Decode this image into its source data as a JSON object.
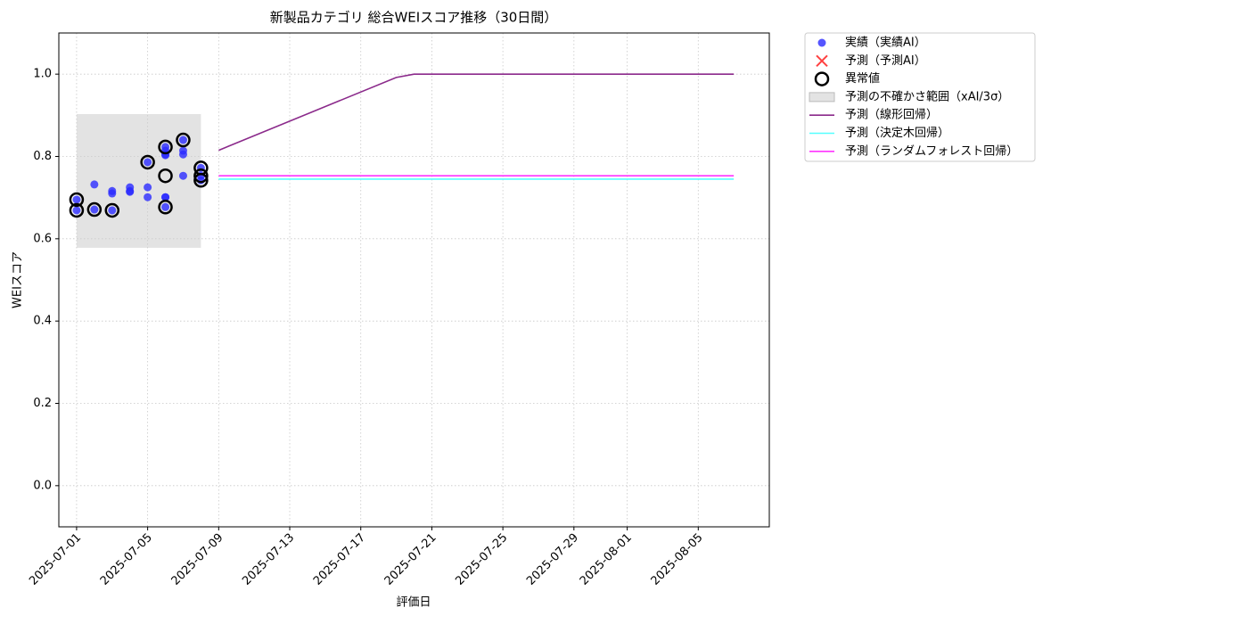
{
  "chart_data": {
    "type": "line",
    "title": "新製品カテゴリ 総合WEIスコア推移（30日間）",
    "x_label": "評価日",
    "y_label": "WEIスコア",
    "xlim": [
      "2025-06-30",
      "2025-08-09"
    ],
    "xticks": [
      "2025-07-01",
      "2025-07-05",
      "2025-07-09",
      "2025-07-13",
      "2025-07-17",
      "2025-07-21",
      "2025-07-25",
      "2025-07-29",
      "2025-08-01",
      "2025-08-05"
    ],
    "ylim": [
      -0.1,
      1.1
    ],
    "yticks": [
      {
        "value": 0,
        "label": "0.0"
      },
      {
        "value": 0.2,
        "label": "0.2"
      },
      {
        "value": 0.4,
        "label": "0.4"
      },
      {
        "value": 0.6,
        "label": "0.6"
      },
      {
        "value": 0.8,
        "label": "0.8"
      },
      {
        "value": 1,
        "label": "1.0"
      }
    ],
    "grid": true,
    "legend": "outside upper right",
    "series": [
      {
        "name": "実績（実績AI）",
        "type": "scatter",
        "marker": "dot",
        "color": "#2a2aff",
        "x": [
          "2025-07-01",
          "2025-07-01",
          "2025-07-02",
          "2025-07-02",
          "2025-07-03",
          "2025-07-03",
          "2025-07-03",
          "2025-07-04",
          "2025-07-04",
          "2025-07-04",
          "2025-07-05",
          "2025-07-05",
          "2025-07-05",
          "2025-07-06",
          "2025-07-06",
          "2025-07-06",
          "2025-07-06",
          "2025-07-06",
          "2025-07-06",
          "2025-07-06",
          "2025-07-07",
          "2025-07-07",
          "2025-07-07",
          "2025-07-07",
          "2025-07-08",
          "2025-07-08",
          "2025-07-08"
        ],
        "values": [
          0.695,
          0.669,
          0.732,
          0.671,
          0.716,
          0.669,
          0.71,
          0.714,
          0.725,
          0.716,
          0.725,
          0.786,
          0.701,
          0.701,
          0.701,
          0.677,
          0.823,
          0.814,
          0.805,
          0.803,
          0.753,
          0.805,
          0.814,
          0.84,
          0.772,
          0.753,
          0.742
        ]
      },
      {
        "name": "予測（予測AI）",
        "type": "scatter",
        "marker": "x",
        "color": "#ff0000",
        "x": [],
        "values": []
      },
      {
        "name": "異常値",
        "type": "scatter",
        "marker": "ring",
        "color": "#000000",
        "x": [
          "2025-07-01",
          "2025-07-01",
          "2025-07-02",
          "2025-07-03",
          "2025-07-05",
          "2025-07-06",
          "2025-07-06",
          "2025-07-06",
          "2025-07-07",
          "2025-07-08",
          "2025-07-08",
          "2025-07-08"
        ],
        "values": [
          0.695,
          0.669,
          0.671,
          0.669,
          0.786,
          0.677,
          0.823,
          0.753,
          0.84,
          0.772,
          0.753,
          0.742
        ]
      },
      {
        "name": "予測の不確かさ範囲（xAI/3σ）",
        "type": "band",
        "color": "#cccccc",
        "x": [
          "2025-07-01",
          "2025-07-08"
        ],
        "lower": [
          0.578,
          0.578
        ],
        "upper": [
          0.903,
          0.903
        ]
      },
      {
        "name": "予測（線形回帰）",
        "type": "line",
        "color": "#8b2a8b",
        "x": [
          "2025-07-09",
          "2025-07-19",
          "2025-07-20",
          "2025-08-07"
        ],
        "values": [
          0.815,
          0.992,
          1.0,
          1.0
        ]
      },
      {
        "name": "予測（決定木回帰）",
        "type": "line",
        "color": "#55ffff",
        "x": [
          "2025-07-09",
          "2025-08-07"
        ],
        "values": [
          0.745,
          0.745
        ]
      },
      {
        "name": "予測（ランダムフォレスト回帰）",
        "type": "line",
        "color": "#ff33ff",
        "x": [
          "2025-07-09",
          "2025-08-07"
        ],
        "values": [
          0.753,
          0.753
        ]
      }
    ]
  }
}
